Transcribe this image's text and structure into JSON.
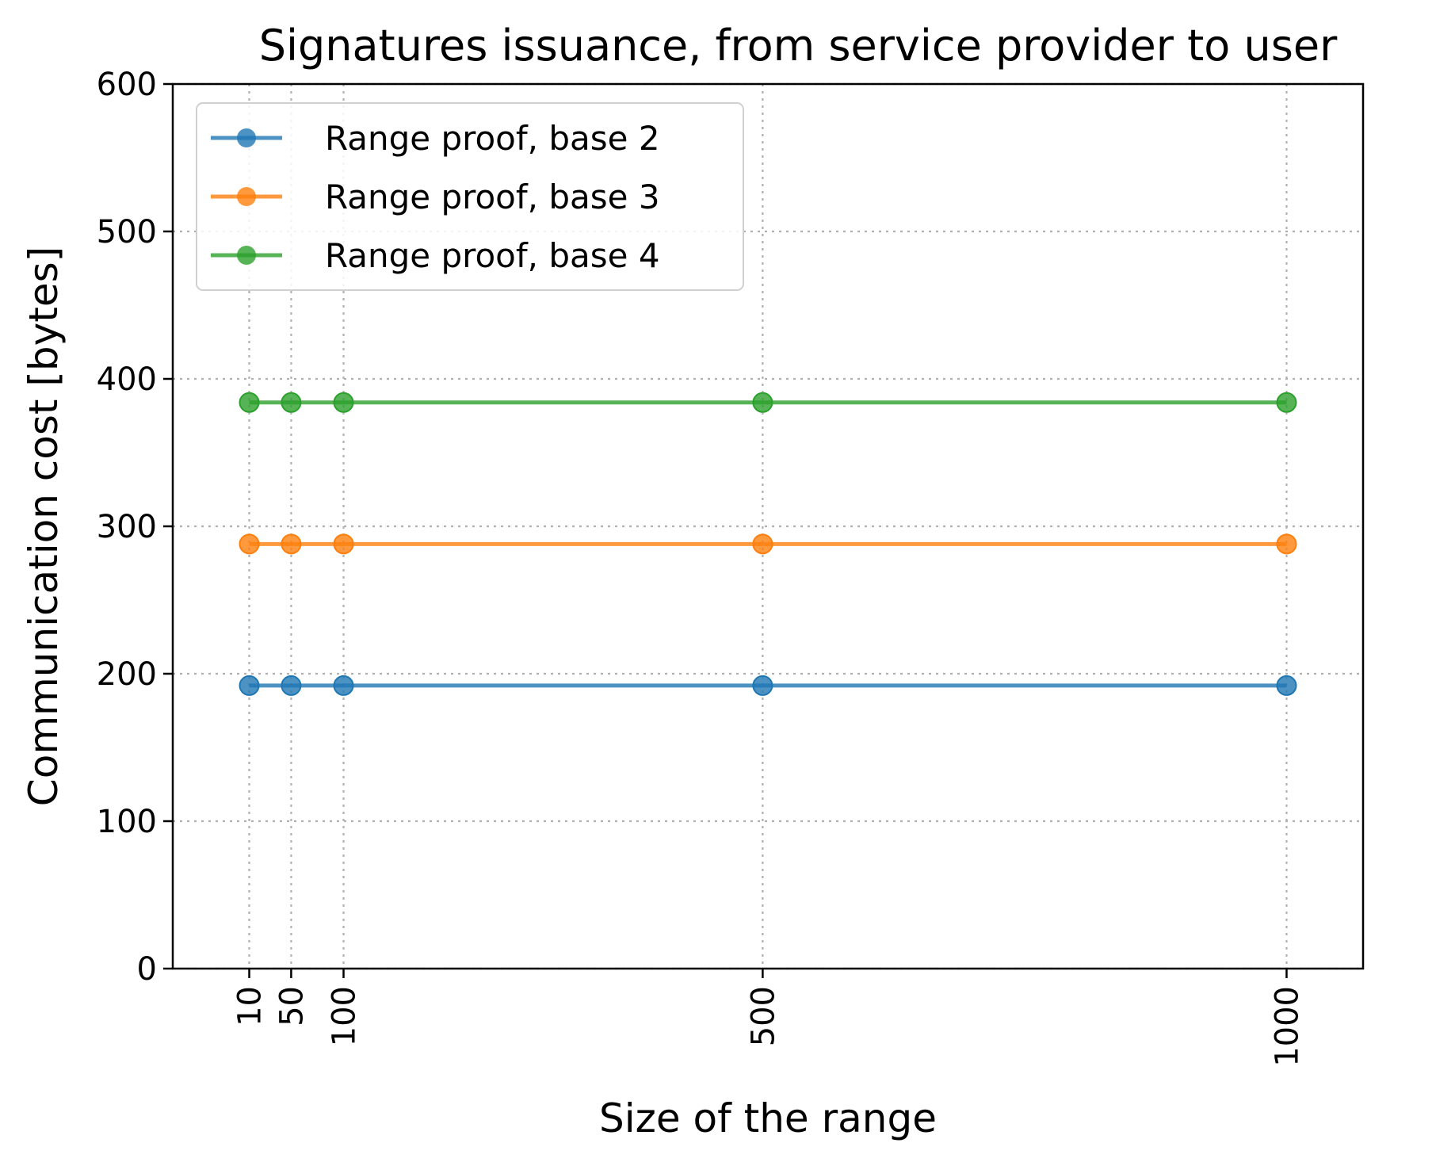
{
  "chart_data": {
    "type": "line",
    "title": "Signatures issuance, from service provider to user",
    "xlabel": "Size of the range",
    "ylabel": "Communication cost [bytes]",
    "x": [
      10,
      50,
      100,
      500,
      1000
    ],
    "xticks": [
      "10",
      "50",
      "100",
      "500",
      "1000"
    ],
    "yticks": [
      "0",
      "100",
      "200",
      "300",
      "400",
      "500",
      "600"
    ],
    "ylim": [
      0,
      600
    ],
    "grid": true,
    "legend_position": "top-left",
    "series": [
      {
        "name": "Range proof, base 2",
        "color": "#1f77b4",
        "values": [
          192,
          192,
          192,
          192,
          192
        ]
      },
      {
        "name": "Range proof, base 3",
        "color": "#ff7f0e",
        "values": [
          288,
          288,
          288,
          288,
          288
        ]
      },
      {
        "name": "Range proof, base 4",
        "color": "#2ca02c",
        "values": [
          384,
          384,
          384,
          384,
          384
        ]
      }
    ]
  }
}
